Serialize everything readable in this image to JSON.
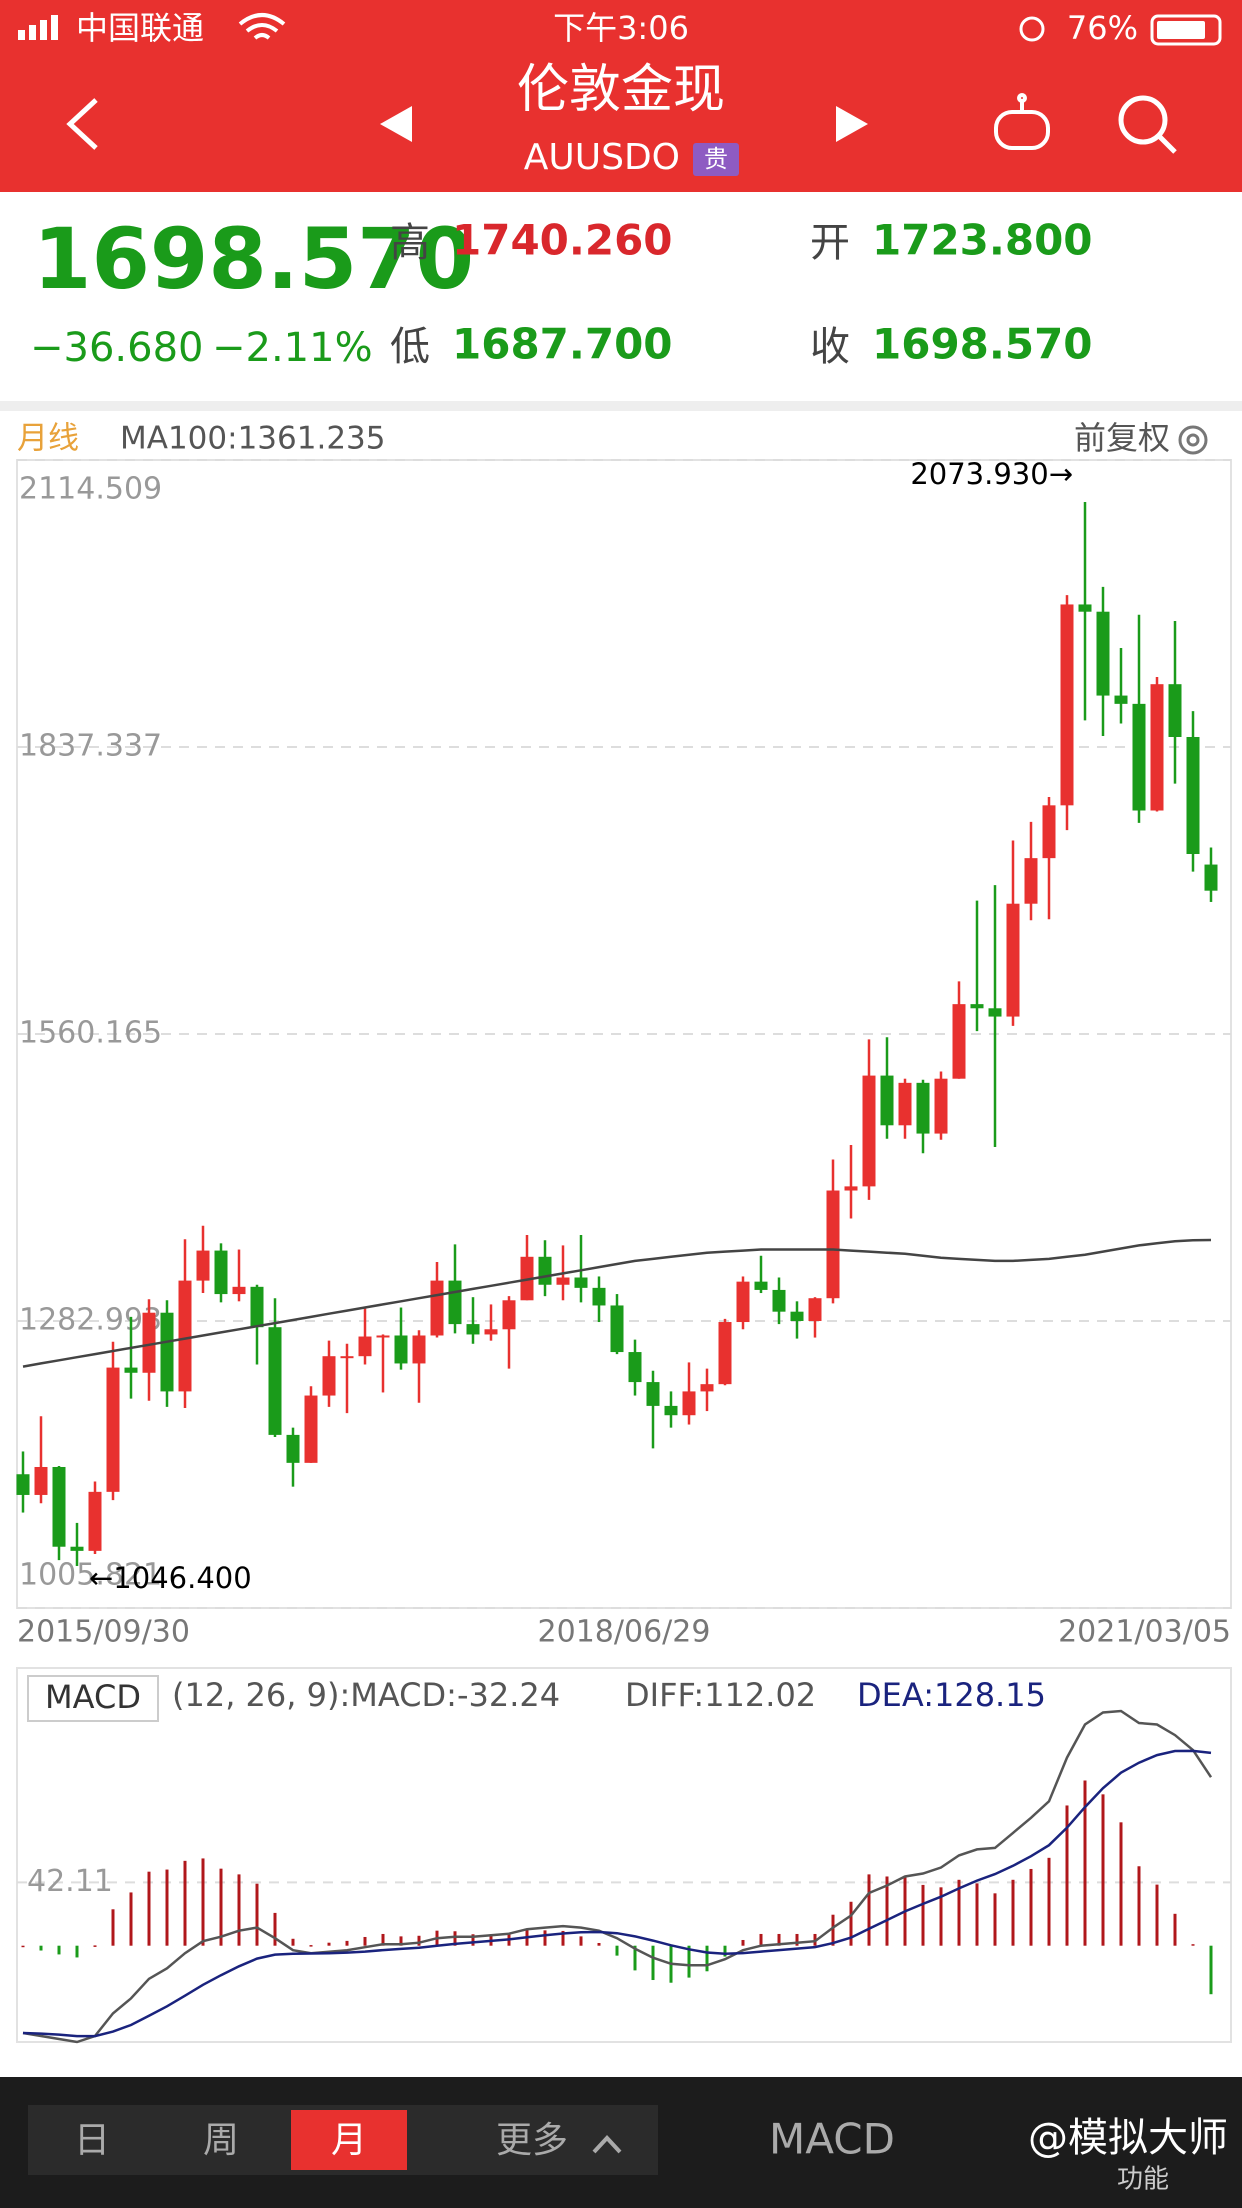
{
  "status_bar": {
    "carrier": "中国联通",
    "time": "下午3:06",
    "battery": "76%"
  },
  "header": {
    "title": "伦敦金现",
    "code": "AUUSDO",
    "badge": "贵"
  },
  "quote": {
    "price": "1698.570",
    "change": "−36.680",
    "change_pct": "−2.11%",
    "high_label": "高",
    "high": "1740.260",
    "open_label": "开",
    "open": "1723.800",
    "low_label": "低",
    "low": "1687.700",
    "close_label": "收",
    "close": "1698.570"
  },
  "chart_data": [
    {
      "type": "candlestick",
      "period": "月线",
      "adjust": "前复权",
      "up_color": "#e8312f",
      "down_color": "#1a9b1a",
      "open": [
        1135,
        1115,
        1142,
        1065,
        1061,
        1118,
        1238,
        1233,
        1291,
        1215,
        1322,
        1351,
        1309,
        1316,
        1277,
        1173,
        1146,
        1211,
        1249,
        1249,
        1268,
        1269,
        1242,
        1269,
        1322,
        1280,
        1270,
        1275,
        1303,
        1345,
        1318,
        1325,
        1315,
        1298,
        1253,
        1224,
        1201,
        1192,
        1215,
        1222,
        1282,
        1321,
        1313,
        1292,
        1283,
        1305,
        1409,
        1413,
        1520,
        1472,
        1513,
        1464,
        1517,
        1589,
        1585,
        1577,
        1686,
        1730,
        1781,
        1975,
        1968,
        1887,
        1879,
        1776,
        1898,
        1847,
        1723.8
      ],
      "high": [
        1157,
        1191,
        1143,
        1088,
        1128,
        1263,
        1287,
        1304,
        1303,
        1362,
        1375,
        1358,
        1352,
        1318,
        1305,
        1180,
        1220,
        1264,
        1261,
        1295,
        1270,
        1296,
        1274,
        1340,
        1357,
        1306,
        1299,
        1307,
        1366,
        1361,
        1356,
        1366,
        1326,
        1309,
        1265,
        1235,
        1215,
        1243,
        1237,
        1285,
        1326,
        1346,
        1325,
        1302,
        1306,
        1439,
        1453,
        1555,
        1557,
        1517,
        1516,
        1524,
        1611,
        1689,
        1704,
        1747,
        1765,
        1789,
        1984,
        2073.93,
        1992,
        1933,
        1965,
        1905,
        1959,
        1872,
        1740.26
      ],
      "low": [
        1098,
        1107,
        1052,
        1046.4,
        1058,
        1110,
        1208,
        1206,
        1200,
        1199,
        1310,
        1301,
        1302,
        1241,
        1171,
        1123,
        1146,
        1200,
        1194,
        1241,
        1214,
        1236,
        1204,
        1267,
        1271,
        1261,
        1264,
        1237,
        1303,
        1307,
        1303,
        1301,
        1282,
        1251,
        1211,
        1160,
        1180,
        1183,
        1196,
        1221,
        1275,
        1310,
        1280,
        1266,
        1267,
        1300,
        1382,
        1400,
        1459,
        1459,
        1445,
        1458,
        1517,
        1563,
        1451,
        1568,
        1670,
        1671,
        1757,
        1863,
        1848,
        1860,
        1764,
        1775,
        1802,
        1717,
        1687.7
      ],
      "close": [
        1115,
        1142,
        1065,
        1061,
        1118,
        1238,
        1233,
        1291,
        1215,
        1322,
        1351,
        1309,
        1316,
        1277,
        1173,
        1146,
        1211,
        1249,
        1249,
        1268,
        1269,
        1242,
        1269,
        1322,
        1280,
        1270,
        1275,
        1303,
        1345,
        1318,
        1325,
        1315,
        1298,
        1253,
        1224,
        1201,
        1192,
        1215,
        1222,
        1282,
        1321,
        1313,
        1292,
        1283,
        1305,
        1409,
        1413,
        1520,
        1472,
        1513,
        1464,
        1517,
        1589,
        1585,
        1577,
        1686,
        1730,
        1781,
        1975,
        1968,
        1887,
        1879,
        1776,
        1898,
        1847,
        1734,
        1698.57
      ],
      "ma": {
        "name": "MA100:1361.235",
        "color": "#444444",
        "values": [
          1239,
          1242,
          1245,
          1248,
          1251,
          1254,
          1257,
          1260,
          1263,
          1266,
          1269,
          1272,
          1275,
          1278,
          1281,
          1284,
          1287,
          1290,
          1293,
          1296,
          1299,
          1302,
          1305,
          1308,
          1311,
          1314,
          1317,
          1320,
          1323,
          1326,
          1329,
          1332,
          1335,
          1338,
          1341,
          1343,
          1345,
          1347,
          1349,
          1350,
          1351,
          1352,
          1352,
          1352,
          1352,
          1352,
          1351,
          1350,
          1349,
          1348,
          1346,
          1344,
          1343,
          1342,
          1341,
          1341,
          1342,
          1343,
          1345,
          1347,
          1350,
          1353,
          1356,
          1358,
          1360,
          1361,
          1361.235
        ]
      },
      "ylim": [
        1005.821,
        2114.509
      ],
      "yticks": [
        1005.821,
        1282.993,
        1560.165,
        1837.337,
        2114.509
      ],
      "grid": true,
      "x_labels": [
        "2015/09/30",
        "2018/06/29",
        "2021/03/05"
      ],
      "max_label": "2073.930→",
      "min_label": "←1046.400"
    },
    {
      "type": "macd",
      "label": "MACD",
      "params": "(12, 26, 9):MACD:-32.24",
      "diff": {
        "name": "DIFF:112.02",
        "color": "#555555",
        "values": [
          -58,
          -60,
          -62,
          -64,
          -60,
          -45,
          -35,
          -22,
          -15,
          -5,
          3,
          6,
          10,
          12,
          5,
          -3,
          -5,
          -4,
          -3,
          -1,
          1,
          1,
          2,
          5,
          6,
          6,
          7,
          8,
          11,
          12,
          13,
          12,
          10,
          5,
          -2,
          -8,
          -12,
          -13,
          -13,
          -9,
          -3,
          0,
          1,
          2,
          3,
          12,
          20,
          35,
          40,
          46,
          48,
          52,
          60,
          64,
          65,
          75,
          85,
          96,
          125,
          147,
          155,
          156,
          148,
          147,
          140,
          130,
          112.02
        ]
      },
      "dea": {
        "name": "DEA:128.15",
        "color": "#1a237e",
        "values": [
          -58,
          -58.4,
          -59.1,
          -60.1,
          -60.1,
          -57.1,
          -52.7,
          -46.6,
          -40.3,
          -33.2,
          -26,
          -19.6,
          -13.7,
          -8.6,
          -5.9,
          -5.3,
          -5.2,
          -5,
          -4.6,
          -3.9,
          -2.9,
          -2.1,
          -1.3,
          0,
          1.2,
          2.2,
          3.2,
          4.2,
          5.6,
          6.9,
          8.1,
          8.9,
          9.1,
          8.3,
          6.2,
          3.4,
          0.3,
          -2.4,
          -4.5,
          -5.4,
          -4.9,
          -3.9,
          -2.9,
          -1.9,
          -0.9,
          1.7,
          5.4,
          11.3,
          17,
          22.8,
          27.8,
          32.6,
          38.1,
          43.3,
          47.6,
          53.1,
          59.5,
          66.8,
          78.4,
          92.1,
          104.7,
          115,
          121.6,
          126.7,
          129.4,
          129.5,
          128.15
        ]
      },
      "histogram": {
        "up_color": "#b0171b",
        "down_color": "#1a9b1a",
        "values": [
          0,
          -3.2,
          -5.8,
          -7.8,
          0.2,
          24.2,
          35.4,
          49.2,
          50.6,
          56.4,
          58,
          51.2,
          47.4,
          41.2,
          21.8,
          4.6,
          0.4,
          2,
          3.2,
          5.8,
          7.8,
          6.2,
          6.6,
          10,
          9.6,
          7.6,
          7.6,
          7.6,
          10.8,
          10.2,
          9.8,
          6.2,
          1.8,
          -6.6,
          -16.4,
          -22.8,
          -24.6,
          -21.2,
          -17,
          -7.2,
          3.8,
          7.8,
          7.8,
          7.8,
          7.8,
          20.6,
          29.2,
          47.4,
          46,
          46.4,
          40.4,
          38.8,
          43.8,
          41.4,
          34.8,
          43.8,
          51,
          58.4,
          93.2,
          109.8,
          100.6,
          82,
          52.8,
          40.6,
          21.2,
          1,
          -32.24
        ]
      },
      "ylim": [
        -64,
        152
      ],
      "yticks": [
        42.11
      ],
      "grid": true
    }
  ],
  "footer": {
    "tabs": [
      "日",
      "周",
      "月",
      "更多"
    ],
    "active_tab": 2,
    "indicator": "MACD",
    "watermark": "@模拟大师",
    "menu": "功能"
  }
}
